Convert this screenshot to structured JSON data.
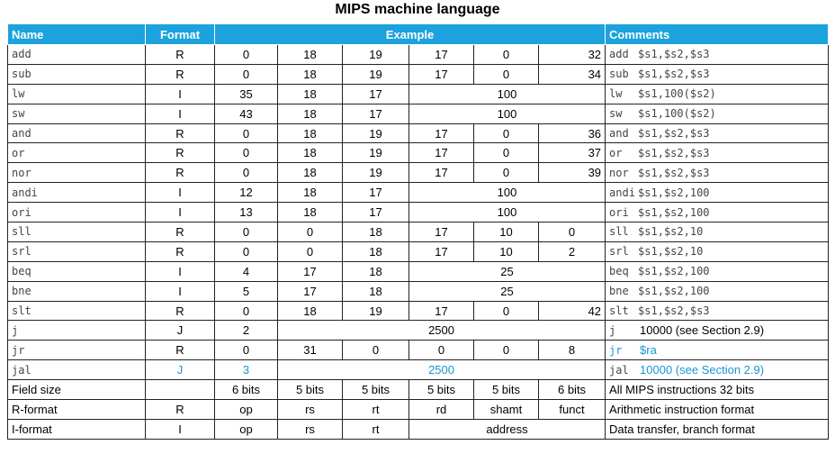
{
  "title": "MIPS machine language",
  "headers": {
    "name": "Name",
    "format": "Format",
    "example": "Example",
    "comments": "Comments"
  },
  "rows": [
    {
      "name": "add",
      "format": "R",
      "fields": [
        "0",
        "18",
        "19",
        "17",
        "0",
        "32"
      ],
      "comment_op": "add",
      "comment_args": "$s1,$s2,$s3"
    },
    {
      "name": "sub",
      "format": "R",
      "fields": [
        "0",
        "18",
        "19",
        "17",
        "0",
        "34"
      ],
      "comment_op": "sub",
      "comment_args": "$s1,$s2,$s3"
    },
    {
      "name": "lw",
      "format": "I",
      "fields": [
        "35",
        "18",
        "17",
        "100"
      ],
      "comment_op": "lw",
      "comment_args": "$s1,100($s2)"
    },
    {
      "name": "sw",
      "format": "I",
      "fields": [
        "43",
        "18",
        "17",
        "100"
      ],
      "comment_op": "sw",
      "comment_args": "$s1,100($s2)"
    },
    {
      "name": "and",
      "format": "R",
      "fields": [
        "0",
        "18",
        "19",
        "17",
        "0",
        "36"
      ],
      "comment_op": "and",
      "comment_args": "$s1,$s2,$s3"
    },
    {
      "name": "or",
      "format": "R",
      "fields": [
        "0",
        "18",
        "19",
        "17",
        "0",
        "37"
      ],
      "comment_op": "or",
      "comment_args": "$s1,$s2,$s3"
    },
    {
      "name": "nor",
      "format": "R",
      "fields": [
        "0",
        "18",
        "19",
        "17",
        "0",
        "39"
      ],
      "comment_op": "nor",
      "comment_args": "$s1,$s2,$s3"
    },
    {
      "name": "andi",
      "format": "I",
      "fields": [
        "12",
        "18",
        "17",
        "100"
      ],
      "comment_op": "andi",
      "comment_args": "$s1,$s2,100"
    },
    {
      "name": "ori",
      "format": "I",
      "fields": [
        "13",
        "18",
        "17",
        "100"
      ],
      "comment_op": "ori",
      "comment_args": "$s1,$s2,100"
    },
    {
      "name": "sll",
      "format": "R",
      "fields": [
        "0",
        "0",
        "18",
        "17",
        "10",
        "0"
      ],
      "comment_op": "sll",
      "comment_args": "$s1,$s2,10"
    },
    {
      "name": "srl",
      "format": "R",
      "fields": [
        "0",
        "0",
        "18",
        "17",
        "10",
        "2"
      ],
      "comment_op": "srl",
      "comment_args": "$s1,$s2,10"
    },
    {
      "name": "beq",
      "format": "I",
      "fields": [
        "4",
        "17",
        "18",
        "25"
      ],
      "comment_op": "beq",
      "comment_args": "$s1,$s2,100"
    },
    {
      "name": "bne",
      "format": "I",
      "fields": [
        "5",
        "17",
        "18",
        "25"
      ],
      "comment_op": "bne",
      "comment_args": "$s1,$s2,100"
    },
    {
      "name": "slt",
      "format": "R",
      "fields": [
        "0",
        "18",
        "19",
        "17",
        "0",
        "42"
      ],
      "comment_op": "slt",
      "comment_args": "$s1,$s2,$s3"
    },
    {
      "name": "j",
      "format": "J",
      "fields": [
        "2",
        "2500"
      ],
      "comment_op": "j",
      "comment_args": "10000 (see Section 2.9)"
    },
    {
      "name": "jr",
      "format": "R",
      "fields": [
        "0",
        "31",
        "0",
        "0",
        "0",
        "8"
      ],
      "comment_op": "jr",
      "comment_args": "$ra"
    },
    {
      "name": "jal",
      "format": "J",
      "fields": [
        "3",
        "2500"
      ],
      "comment_op": "jal",
      "comment_args": "10000 (see Section 2.9)"
    }
  ],
  "field_size": {
    "label": "Field size",
    "cells": [
      "6 bits",
      "5 bits",
      "5 bits",
      "5 bits",
      "5 bits",
      "6 bits"
    ],
    "comment": "All MIPS instructions 32 bits"
  },
  "r_format": {
    "label": "R-format",
    "format": "R",
    "cells": [
      "op",
      "rs",
      "rt",
      "rd",
      "shamt",
      "funct"
    ],
    "comment": "Arithmetic instruction format"
  },
  "i_format": {
    "label": "I-format",
    "format": "I",
    "cells": [
      "op",
      "rs",
      "rt",
      "address"
    ],
    "comment": "Data transfer, branch format"
  },
  "colors": {
    "header_bg": "#1ca2dd",
    "accent_text": "#1a95d2"
  }
}
